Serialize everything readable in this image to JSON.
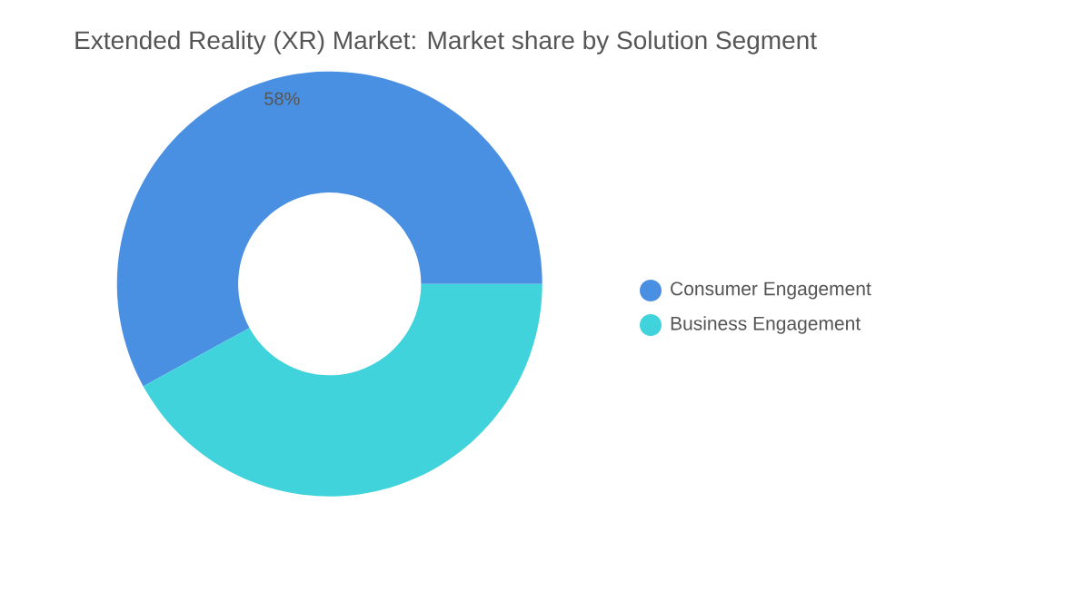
{
  "chart_data": {
    "type": "donut",
    "title": "Extended Reality (XR) Market: Market share by Solution Segment",
    "categories": [
      "Consumer Engagement",
      "Business Engagement"
    ],
    "values": [
      58,
      42
    ],
    "colors": [
      "#4a90e2",
      "#40d3dc"
    ],
    "value_labels": [
      "58%",
      null
    ],
    "legend": "right"
  }
}
